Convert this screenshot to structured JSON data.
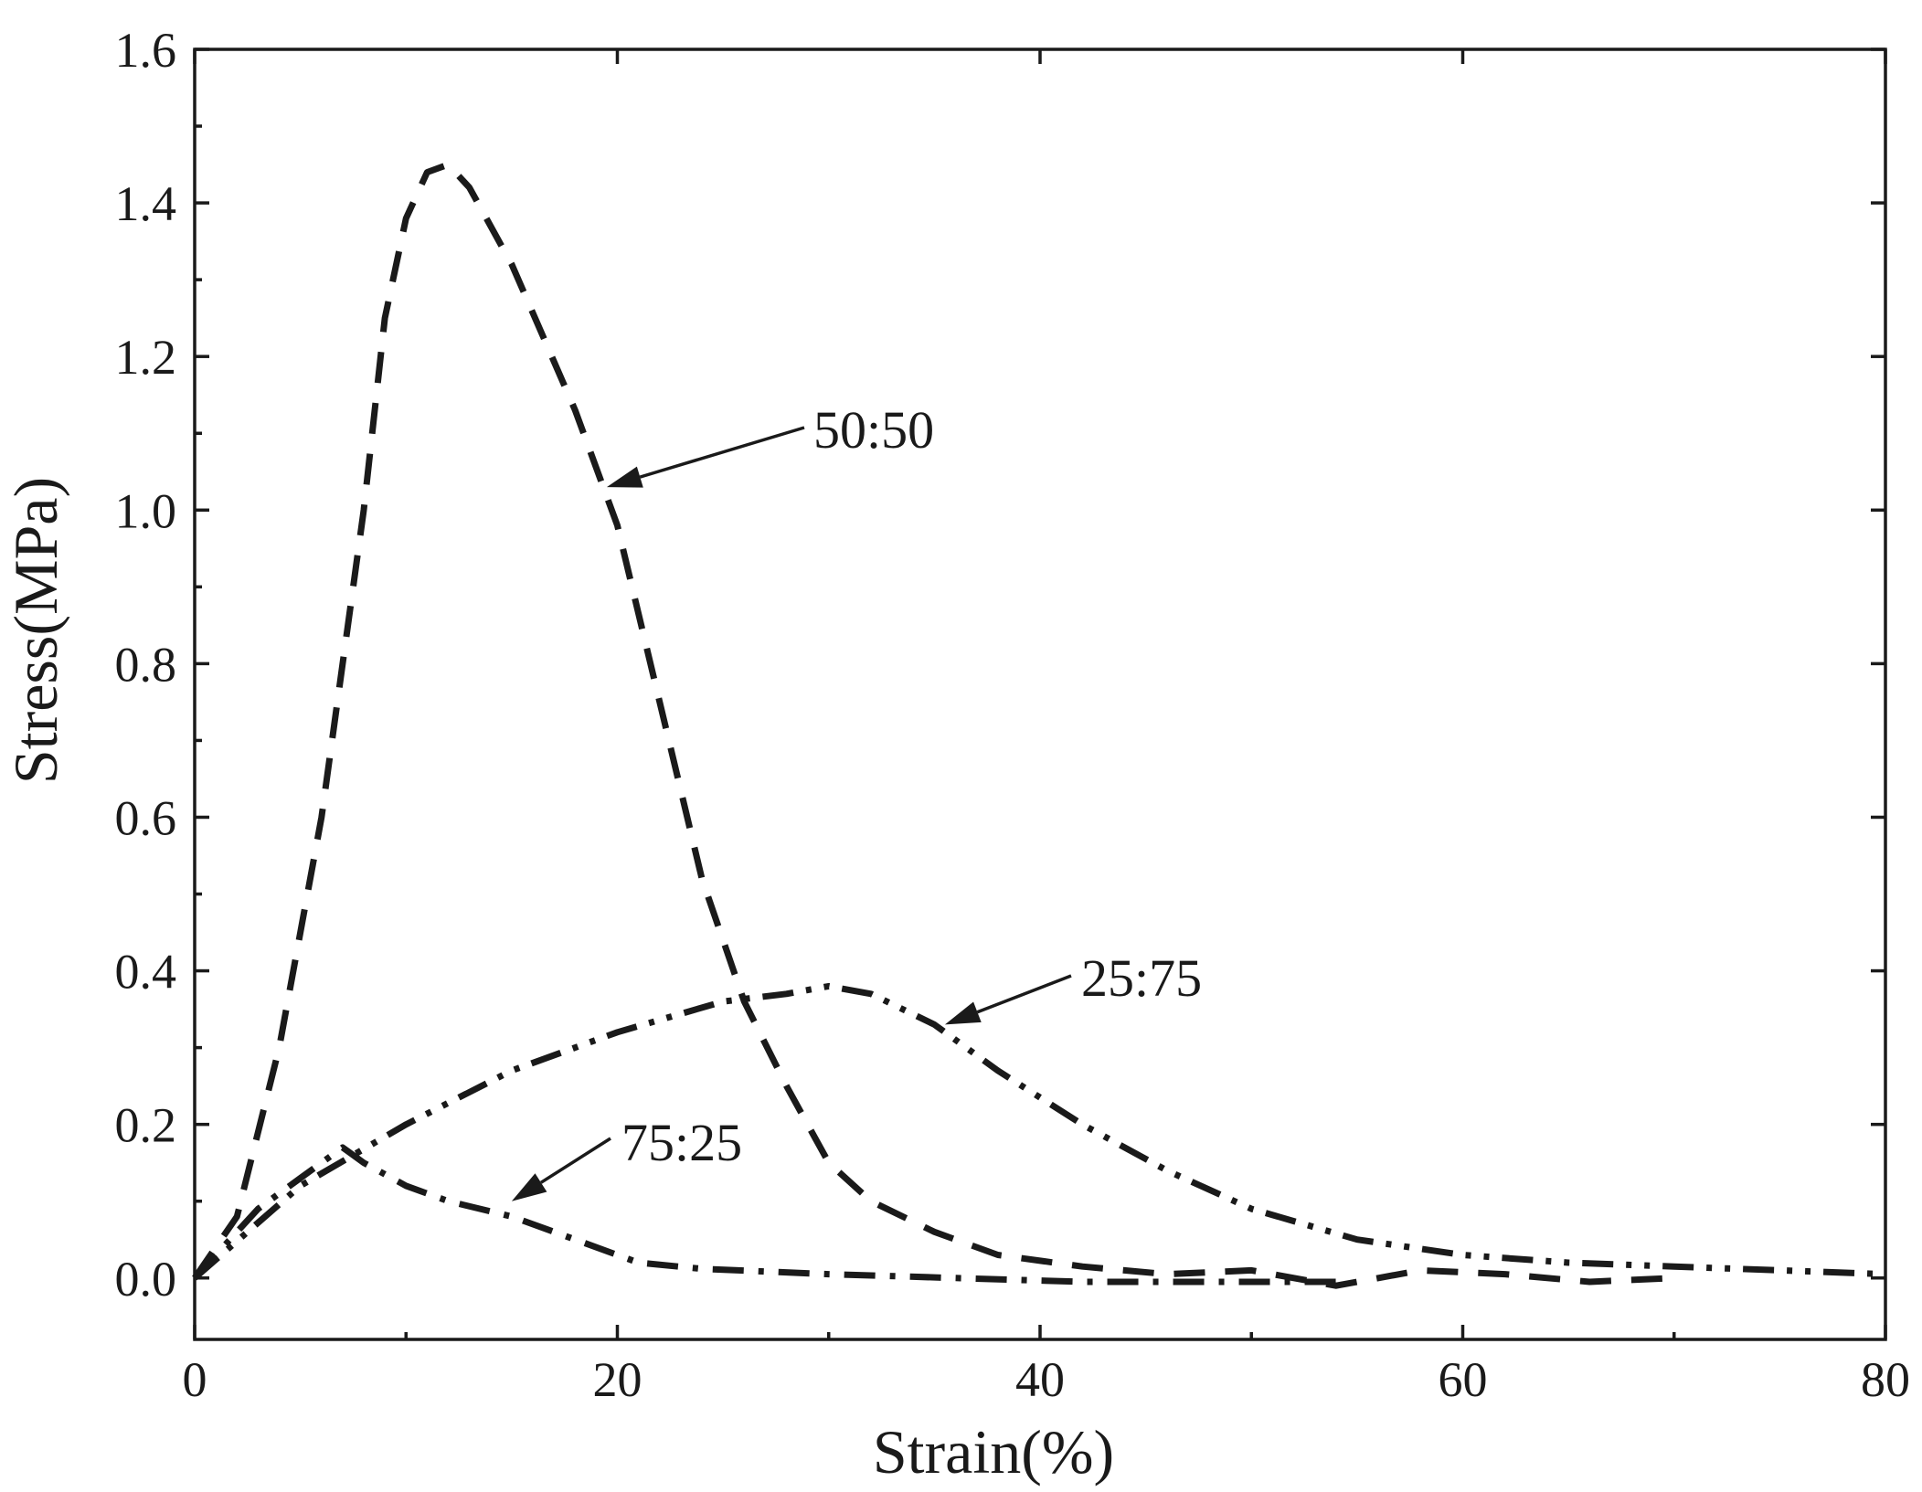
{
  "chart_data": {
    "type": "line",
    "title": "",
    "xlabel": "Strain(%)",
    "ylabel": "Stress(MPa)",
    "xlim": [
      0,
      80
    ],
    "ylim": [
      -0.08,
      1.6
    ],
    "xticks": [
      0,
      20,
      40,
      60,
      80
    ],
    "yticks": [
      0.0,
      0.2,
      0.4,
      0.6,
      0.8,
      1.0,
      1.2,
      1.4,
      1.6
    ],
    "xtick_labels": [
      "0",
      "20",
      "40",
      "60",
      "80"
    ],
    "ytick_labels": [
      "0.0",
      "0.2",
      "0.4",
      "0.6",
      "0.8",
      "1.0",
      "1.2",
      "1.4",
      "1.6"
    ],
    "grid": false,
    "legend": "none",
    "series": [
      {
        "name": "50:50",
        "style": "dashed",
        "x": [
          0,
          2,
          4,
          6,
          7,
          8,
          9,
          10,
          11,
          12,
          13,
          15,
          18,
          20,
          22,
          24,
          26,
          28,
          30,
          32,
          35,
          38,
          42,
          46,
          50,
          54,
          58,
          62,
          66,
          70
        ],
        "y": [
          0,
          0.08,
          0.3,
          0.6,
          0.8,
          1.0,
          1.25,
          1.38,
          1.44,
          1.45,
          1.42,
          1.32,
          1.13,
          0.98,
          0.75,
          0.52,
          0.36,
          0.25,
          0.15,
          0.1,
          0.06,
          0.03,
          0.015,
          0.005,
          0.01,
          -0.01,
          0.01,
          0.005,
          -0.005,
          0.0
        ]
      },
      {
        "name": "25:75",
        "style": "dash-dot-dot",
        "x": [
          0,
          5,
          10,
          15,
          20,
          25,
          28,
          30,
          32,
          35,
          38,
          42,
          46,
          50,
          55,
          60,
          65,
          70,
          75,
          80
        ],
        "y": [
          0,
          0.12,
          0.2,
          0.27,
          0.32,
          0.36,
          0.37,
          0.38,
          0.37,
          0.33,
          0.27,
          0.2,
          0.14,
          0.09,
          0.05,
          0.03,
          0.02,
          0.015,
          0.01,
          0.005
        ]
      },
      {
        "name": "75:25",
        "style": "dash-dot",
        "x": [
          0,
          3,
          5,
          7,
          8,
          10,
          12,
          15,
          18,
          21,
          24,
          30,
          36,
          42,
          48,
          54
        ],
        "y": [
          0,
          0.09,
          0.13,
          0.17,
          0.15,
          0.12,
          0.1,
          0.08,
          0.05,
          0.02,
          0.012,
          0.005,
          0.0,
          -0.005,
          -0.005,
          -0.005
        ]
      }
    ],
    "annotations": [
      {
        "text": "50:50",
        "target": [
          19.5,
          1.03
        ]
      },
      {
        "text": "25:75",
        "target": [
          35.5,
          0.33
        ]
      },
      {
        "text": "75:25",
        "target": [
          15,
          0.1
        ]
      }
    ]
  }
}
